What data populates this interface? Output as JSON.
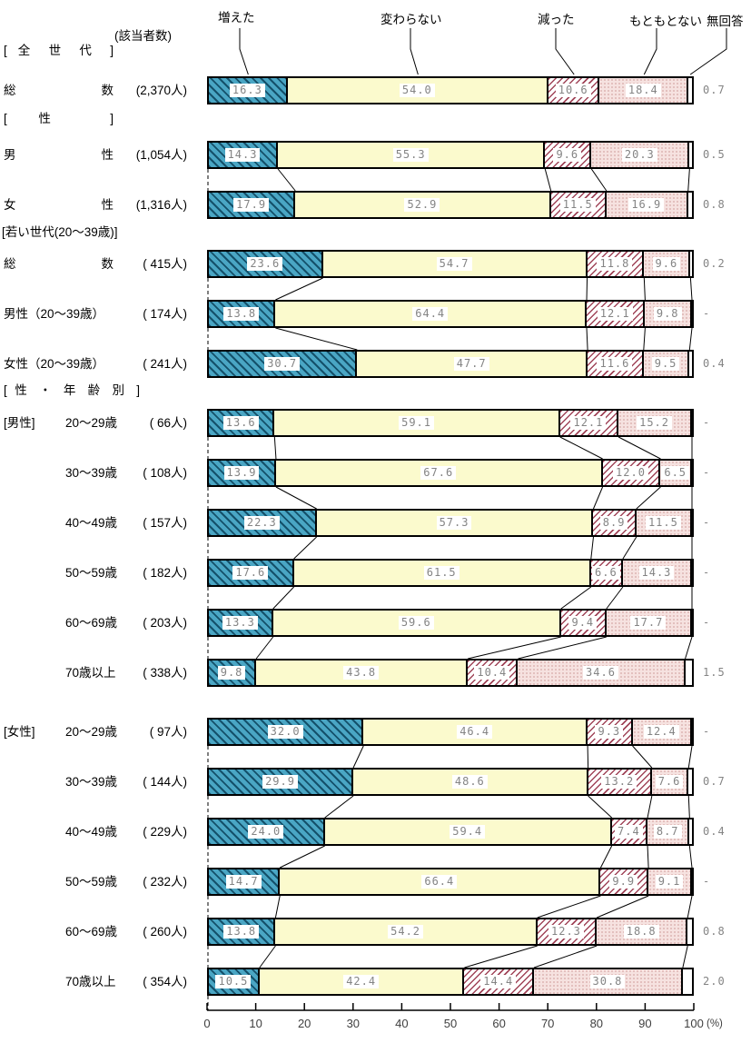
{
  "header": {
    "respondents": "(該当者数)",
    "legend": [
      "増えた",
      "変わらない",
      "減った",
      "もともとない",
      "無回答"
    ]
  },
  "sections": [
    "[ 全 世 代 ]",
    "[ 性 ]",
    "[若い世代(20～39歳)]",
    "[ 性 ・ 年 齢 別 ]"
  ],
  "colors": {
    "increased_base": "#4aa6c4",
    "increased_stripe": "#14506a",
    "unchanged": "#fbfacd",
    "decreased_base": "#ffffff",
    "decreased_stripe": "#a04458",
    "never_base": "#f6e2e0",
    "never_dot": "#ddb4b2",
    "bar_border": "#000000",
    "value_text": "#848484"
  },
  "chart_data": {
    "type": "bar",
    "stacked": true,
    "orientation": "horizontal",
    "unit": "(%)",
    "xlim": [
      0,
      100
    ],
    "x_ticks": [
      "0",
      "10",
      "20",
      "30",
      "40",
      "50",
      "60",
      "70",
      "80",
      "90",
      "100"
    ],
    "series_labels": [
      "増えた",
      "変わらない",
      "減った",
      "もともとない",
      "無回答"
    ],
    "rows": [
      {
        "group": "zensedai",
        "prefix": "",
        "label": "総 数",
        "label_style": "spread",
        "count": "(2,370人)",
        "values": [
          16.3,
          54.0,
          10.6,
          18.4
        ],
        "no_answer": "0.7"
      },
      {
        "group": "sei",
        "prefix": "",
        "label": "男 性",
        "label_style": "spread",
        "count": "(1,054人)",
        "values": [
          14.3,
          55.3,
          9.6,
          20.3
        ],
        "no_answer": "0.5"
      },
      {
        "group": "sei",
        "prefix": "",
        "label": "女 性",
        "label_style": "spread",
        "count": "(1,316人)",
        "values": [
          17.9,
          52.9,
          11.5,
          16.9
        ],
        "no_answer": "0.8"
      },
      {
        "group": "wakai",
        "prefix": "",
        "label": "総 数",
        "label_style": "spread",
        "count": "( 415人)",
        "values": [
          23.6,
          54.7,
          11.8,
          9.6
        ],
        "no_answer": "0.2"
      },
      {
        "group": "wakai",
        "prefix": "",
        "label": "男性（20～39歳）",
        "label_style": "wide",
        "count": "( 174人)",
        "values": [
          13.8,
          64.4,
          12.1,
          9.8
        ],
        "no_answer": "-"
      },
      {
        "group": "wakai",
        "prefix": "",
        "label": "女性（20～39歳）",
        "label_style": "wide",
        "count": "( 241人)",
        "values": [
          30.7,
          47.7,
          11.6,
          9.5
        ],
        "no_answer": "0.4"
      },
      {
        "group": "dansei-nenrei",
        "prefix": "[男性]",
        "label": "20～29歳",
        "label_style": "age",
        "count": "( 66人)",
        "values": [
          13.6,
          59.1,
          12.1,
          15.2
        ],
        "no_answer": "-"
      },
      {
        "group": "dansei-nenrei",
        "prefix": "",
        "label": "30～39歳",
        "label_style": "age",
        "count": "( 108人)",
        "values": [
          13.9,
          67.6,
          12.0,
          6.5
        ],
        "no_answer": "-"
      },
      {
        "group": "dansei-nenrei",
        "prefix": "",
        "label": "40～49歳",
        "label_style": "age",
        "count": "( 157人)",
        "values": [
          22.3,
          57.3,
          8.9,
          11.5
        ],
        "no_answer": "-"
      },
      {
        "group": "dansei-nenrei",
        "prefix": "",
        "label": "50～59歳",
        "label_style": "age",
        "count": "( 182人)",
        "values": [
          17.6,
          61.5,
          6.6,
          14.3
        ],
        "no_answer": "-"
      },
      {
        "group": "dansei-nenrei",
        "prefix": "",
        "label": "60～69歳",
        "label_style": "age",
        "count": "( 203人)",
        "values": [
          13.3,
          59.6,
          9.4,
          17.7
        ],
        "no_answer": "-"
      },
      {
        "group": "dansei-nenrei",
        "prefix": "",
        "label": "70歳以上",
        "label_style": "age",
        "count": "( 338人)",
        "values": [
          9.8,
          43.8,
          10.4,
          34.6
        ],
        "no_answer": "1.5"
      },
      {
        "group": "josei-nenrei",
        "prefix": "[女性]",
        "label": "20～29歳",
        "label_style": "age",
        "count": "( 97人)",
        "values": [
          32.0,
          46.4,
          9.3,
          12.4
        ],
        "no_answer": "-"
      },
      {
        "group": "josei-nenrei",
        "prefix": "",
        "label": "30～39歳",
        "label_style": "age",
        "count": "( 144人)",
        "values": [
          29.9,
          48.6,
          13.2,
          7.6
        ],
        "no_answer": "0.7"
      },
      {
        "group": "josei-nenrei",
        "prefix": "",
        "label": "40～49歳",
        "label_style": "age",
        "count": "( 229人)",
        "values": [
          24.0,
          59.4,
          7.4,
          8.7
        ],
        "no_answer": "0.4"
      },
      {
        "group": "josei-nenrei",
        "prefix": "",
        "label": "50～59歳",
        "label_style": "age",
        "count": "( 232人)",
        "values": [
          14.7,
          66.4,
          9.9,
          9.1
        ],
        "no_answer": "-"
      },
      {
        "group": "josei-nenrei",
        "prefix": "",
        "label": "60～69歳",
        "label_style": "age",
        "count": "( 260人)",
        "values": [
          13.8,
          54.2,
          12.3,
          18.8
        ],
        "no_answer": "0.8"
      },
      {
        "group": "josei-nenrei",
        "prefix": "",
        "label": "70歳以上",
        "label_style": "age",
        "count": "( 354人)",
        "values": [
          10.5,
          42.4,
          14.4,
          30.8
        ],
        "no_answer": "2.0"
      }
    ]
  }
}
